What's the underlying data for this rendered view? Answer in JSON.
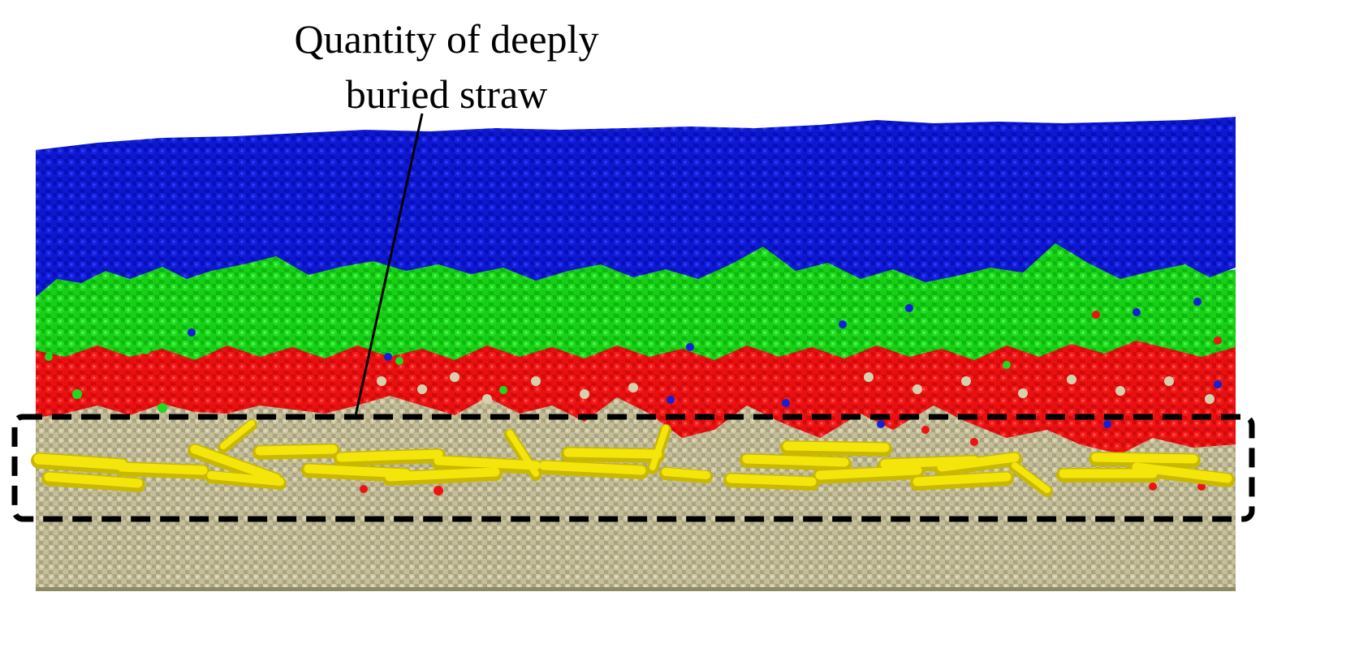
{
  "annotation": {
    "line1": "Quantity of deeply",
    "line2": "buried straw"
  },
  "layers": [
    {
      "name": "top-soil-layer",
      "color": "#0a12c8"
    },
    {
      "name": "second-soil-layer",
      "color": "#12d812"
    },
    {
      "name": "third-soil-layer",
      "color": "#f01212"
    },
    {
      "name": "bottom-soil-layer",
      "color": "#c9c3a0"
    },
    {
      "name": "straw-particles",
      "color": "#f2e400"
    }
  ],
  "highlight": {
    "style": "dashed",
    "color": "#000000"
  }
}
